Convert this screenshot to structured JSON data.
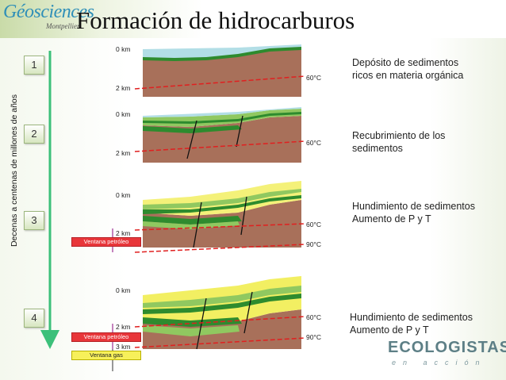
{
  "header": {
    "logo_text": "Géosciences",
    "logo_sub": "Montpellier",
    "title": "Formación de hidrocarburos"
  },
  "timeline_label": "Decenas a centenas de millones de años",
  "steps": [
    {
      "number": "1",
      "km_top": "0 km",
      "km_2": "2 km",
      "temp_60": "60°C",
      "desc": [
        "Depósito de sedimentos",
        "ricos en materia orgánica"
      ]
    },
    {
      "number": "2",
      "km_top": "0 km",
      "km_2": "2 km",
      "temp_60": "60°C",
      "desc": [
        "Recubrimiento de los",
        "sedimentos"
      ]
    },
    {
      "number": "3",
      "km_top": "0 km",
      "km_2": "2 km",
      "temp_60": "60°C",
      "temp_90": "90°C",
      "oil_window": "Ventana petróleo",
      "desc": [
        "Hundimiento de sedimentos",
        "Aumento de P y T"
      ]
    },
    {
      "number": "4",
      "km_top": "0 km",
      "km_2": "2 km",
      "km_3": "3 km",
      "temp_60": "60°C",
      "temp_90": "90°C",
      "oil_window": "Ventana petróleo",
      "gas_window": "Ventana gas",
      "desc": [
        "Hundimiento de sedimentos",
        "Aumento de P y T"
      ]
    }
  ],
  "footer": {
    "logo_text": "ECOLOGISTAS",
    "logo_sub": "en acción"
  },
  "colors": {
    "rock": "#a8705a",
    "sediment_dark": "#2e8b2e",
    "sediment_light": "#90c860",
    "sediment_young": "#f2ef62",
    "sea": "#9fd6e0",
    "isotherm": "#e02020",
    "timeline_arrow": "#3cc07a"
  }
}
